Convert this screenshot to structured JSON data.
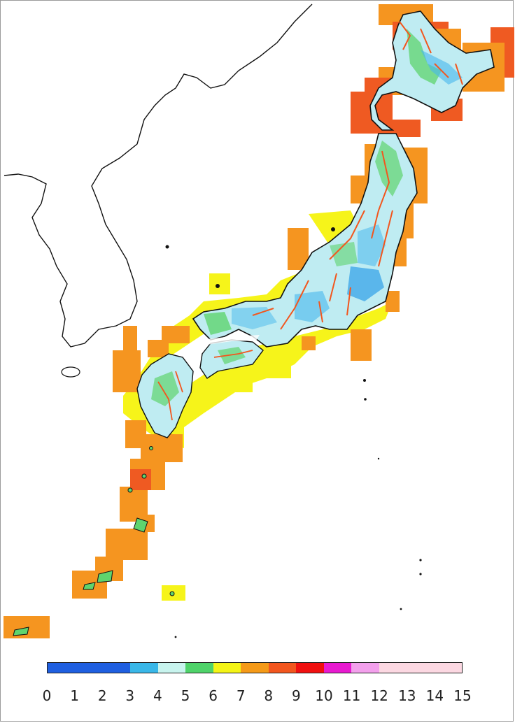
{
  "legend": {
    "ticks": [
      "0",
      "1",
      "2",
      "3",
      "4",
      "5",
      "6",
      "7",
      "8",
      "9",
      "10",
      "11",
      "12",
      "13",
      "14",
      "15"
    ],
    "bins": [
      {
        "from": 0,
        "to": 3,
        "color": "#1f5fe0"
      },
      {
        "from": 3,
        "to": 4,
        "color": "#39b7e8"
      },
      {
        "from": 4,
        "to": 5,
        "color": "#c8f4ee"
      },
      {
        "from": 5,
        "to": 6,
        "color": "#4fd36a"
      },
      {
        "from": 6,
        "to": 7,
        "color": "#f4f416"
      },
      {
        "from": 7,
        "to": 8,
        "color": "#f59a18"
      },
      {
        "from": 8,
        "to": 9,
        "color": "#f2561e"
      },
      {
        "from": 9,
        "to": 10,
        "color": "#f01010"
      },
      {
        "from": 10,
        "to": 11,
        "color": "#e81ad0"
      },
      {
        "from": 11,
        "to": 12,
        "color": "#f3a0ec"
      },
      {
        "from": 12,
        "to": 15,
        "color": "#fcd8e2"
      }
    ]
  },
  "colors": {
    "land_interior": "#bfecf2",
    "land_blue": "#48b8ec",
    "land_green": "#5fd46e",
    "coast_yellow": "#f6f41a",
    "offshore_orange": "#f59520",
    "offshore_red": "#ef5a22",
    "outline": "#111111"
  }
}
